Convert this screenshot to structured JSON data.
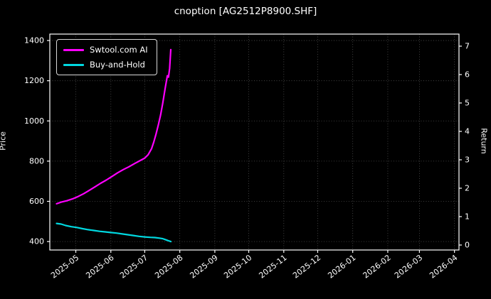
{
  "title": "cnoption [AG2512P8900.SHF]",
  "colors": {
    "background": "#000000",
    "foreground": "#ffffff",
    "grid": "#4f4f4f",
    "ai_line": "#ff00ff",
    "buyhold_line": "#00d8e0"
  },
  "chart_data": {
    "type": "line",
    "title": "cnoption [AG2512P8900.SHF]",
    "ylabel_left": "Price",
    "ylabel_right": "Return",
    "grid": true,
    "legend": {
      "position": "upper left",
      "entries": [
        {
          "name": "Swtool.com AI",
          "color": "#ff00ff"
        },
        {
          "name": "Buy-and-Hold",
          "color": "#00d8e0"
        }
      ]
    },
    "x_ticks": [
      "2025-05",
      "2025-06",
      "2025-07",
      "2025-08",
      "2025-09",
      "2025-10",
      "2025-11",
      "2025-12",
      "2026-01",
      "2026-02",
      "2026-03",
      "2026-04"
    ],
    "y_ticks_left": [
      400,
      600,
      800,
      1000,
      1200,
      1400
    ],
    "y_ticks_right": [
      0,
      1,
      2,
      3,
      4,
      5,
      6,
      7
    ],
    "xlim": [
      "2025-04-08",
      "2026-04-05"
    ],
    "ylim_left": [
      358,
      1432
    ],
    "ylim_right": [
      -0.175,
      7.425
    ],
    "series": [
      {
        "name": "Swtool.com AI",
        "color": "#ff00ff",
        "axis": "left",
        "points": [
          [
            "2025-04-14",
            588
          ],
          [
            "2025-04-18",
            596
          ],
          [
            "2025-04-23",
            603
          ],
          [
            "2025-04-28",
            612
          ],
          [
            "2025-05-03",
            624
          ],
          [
            "2025-05-08",
            638
          ],
          [
            "2025-05-13",
            655
          ],
          [
            "2025-05-18",
            672
          ],
          [
            "2025-05-23",
            690
          ],
          [
            "2025-05-28",
            706
          ],
          [
            "2025-06-02",
            724
          ],
          [
            "2025-06-07",
            742
          ],
          [
            "2025-06-12",
            758
          ],
          [
            "2025-06-17",
            772
          ],
          [
            "2025-06-22",
            788
          ],
          [
            "2025-06-27",
            803
          ],
          [
            "2025-07-01",
            815
          ],
          [
            "2025-07-04",
            832
          ],
          [
            "2025-07-07",
            862
          ],
          [
            "2025-07-09",
            895
          ],
          [
            "2025-07-11",
            935
          ],
          [
            "2025-07-13",
            980
          ],
          [
            "2025-07-15",
            1030
          ],
          [
            "2025-07-17",
            1090
          ],
          [
            "2025-07-19",
            1160
          ],
          [
            "2025-07-21",
            1225
          ],
          [
            "2025-07-22",
            1218
          ],
          [
            "2025-07-23",
            1262
          ],
          [
            "2025-07-24",
            1355
          ]
        ]
      },
      {
        "name": "Buy-and-Hold",
        "color": "#00d8e0",
        "axis": "left",
        "points": [
          [
            "2025-04-14",
            490
          ],
          [
            "2025-04-18",
            487
          ],
          [
            "2025-04-22",
            480
          ],
          [
            "2025-04-27",
            474
          ],
          [
            "2025-05-02",
            470
          ],
          [
            "2025-05-07",
            464
          ],
          [
            "2025-05-12",
            459
          ],
          [
            "2025-05-17",
            455
          ],
          [
            "2025-05-22",
            451
          ],
          [
            "2025-05-27",
            448
          ],
          [
            "2025-06-01",
            445
          ],
          [
            "2025-06-06",
            442
          ],
          [
            "2025-06-11",
            438
          ],
          [
            "2025-06-16",
            434
          ],
          [
            "2025-06-21",
            430
          ],
          [
            "2025-06-26",
            426
          ],
          [
            "2025-07-01",
            423
          ],
          [
            "2025-07-06",
            421
          ],
          [
            "2025-07-10",
            420
          ],
          [
            "2025-07-14",
            417
          ],
          [
            "2025-07-17",
            414
          ],
          [
            "2025-07-20",
            408
          ],
          [
            "2025-07-22",
            404
          ],
          [
            "2025-07-24",
            400
          ]
        ]
      }
    ]
  }
}
